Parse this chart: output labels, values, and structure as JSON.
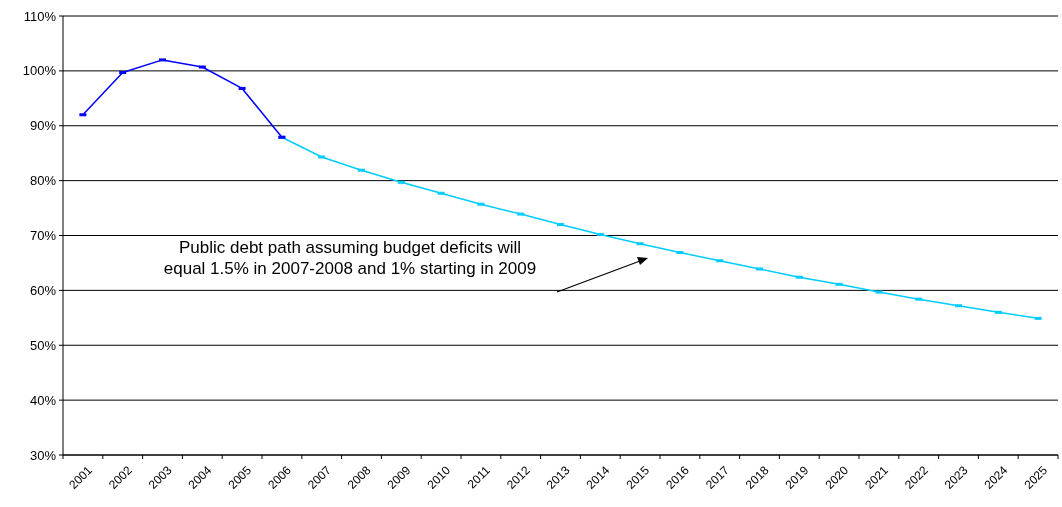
{
  "chart_data": {
    "type": "line",
    "categories": [
      "2001",
      "2002",
      "2003",
      "2004",
      "2005",
      "2006",
      "2007",
      "2008",
      "2009",
      "2010",
      "2011",
      "2012",
      "2013",
      "2014",
      "2015",
      "2016",
      "2017",
      "2018",
      "2019",
      "2020",
      "2021",
      "2022",
      "2023",
      "2024",
      "2025"
    ],
    "series": [
      {
        "color": "#0000ff",
        "values": [
          92,
          99.7,
          102,
          100.7,
          96.8,
          87.9,
          null,
          null,
          null,
          null,
          null,
          null,
          null,
          null,
          null,
          null,
          null,
          null,
          null,
          null,
          null,
          null,
          null,
          null,
          null
        ]
      },
      {
        "color": "#00ccff",
        "values": [
          null,
          null,
          null,
          null,
          null,
          87.9,
          84.3,
          81.9,
          79.7,
          77.7,
          75.7,
          73.9,
          72.0,
          70.2,
          68.5,
          66.9,
          65.4,
          63.9,
          62.4,
          61.1,
          59.7,
          58.4,
          57.2,
          56.0,
          54.9
        ]
      }
    ],
    "ylim": [
      30,
      110
    ],
    "yticks": [
      {
        "value": 30,
        "label": "30%"
      },
      {
        "value": 40,
        "label": "40%"
      },
      {
        "value": 50,
        "label": "50%"
      },
      {
        "value": 60,
        "label": "60%"
      },
      {
        "value": 70,
        "label": "70%"
      },
      {
        "value": 80,
        "label": "80%"
      },
      {
        "value": 90,
        "label": "90%"
      },
      {
        "value": 100,
        "label": "100%"
      },
      {
        "value": 110,
        "label": "110%"
      }
    ],
    "grid": "y",
    "marker": "square",
    "line_style": "solid",
    "annotations": [
      "Public debt path assuming budget deficits will\nequal 1.5% in 2007-2008 and 1% starting in 2009"
    ]
  }
}
